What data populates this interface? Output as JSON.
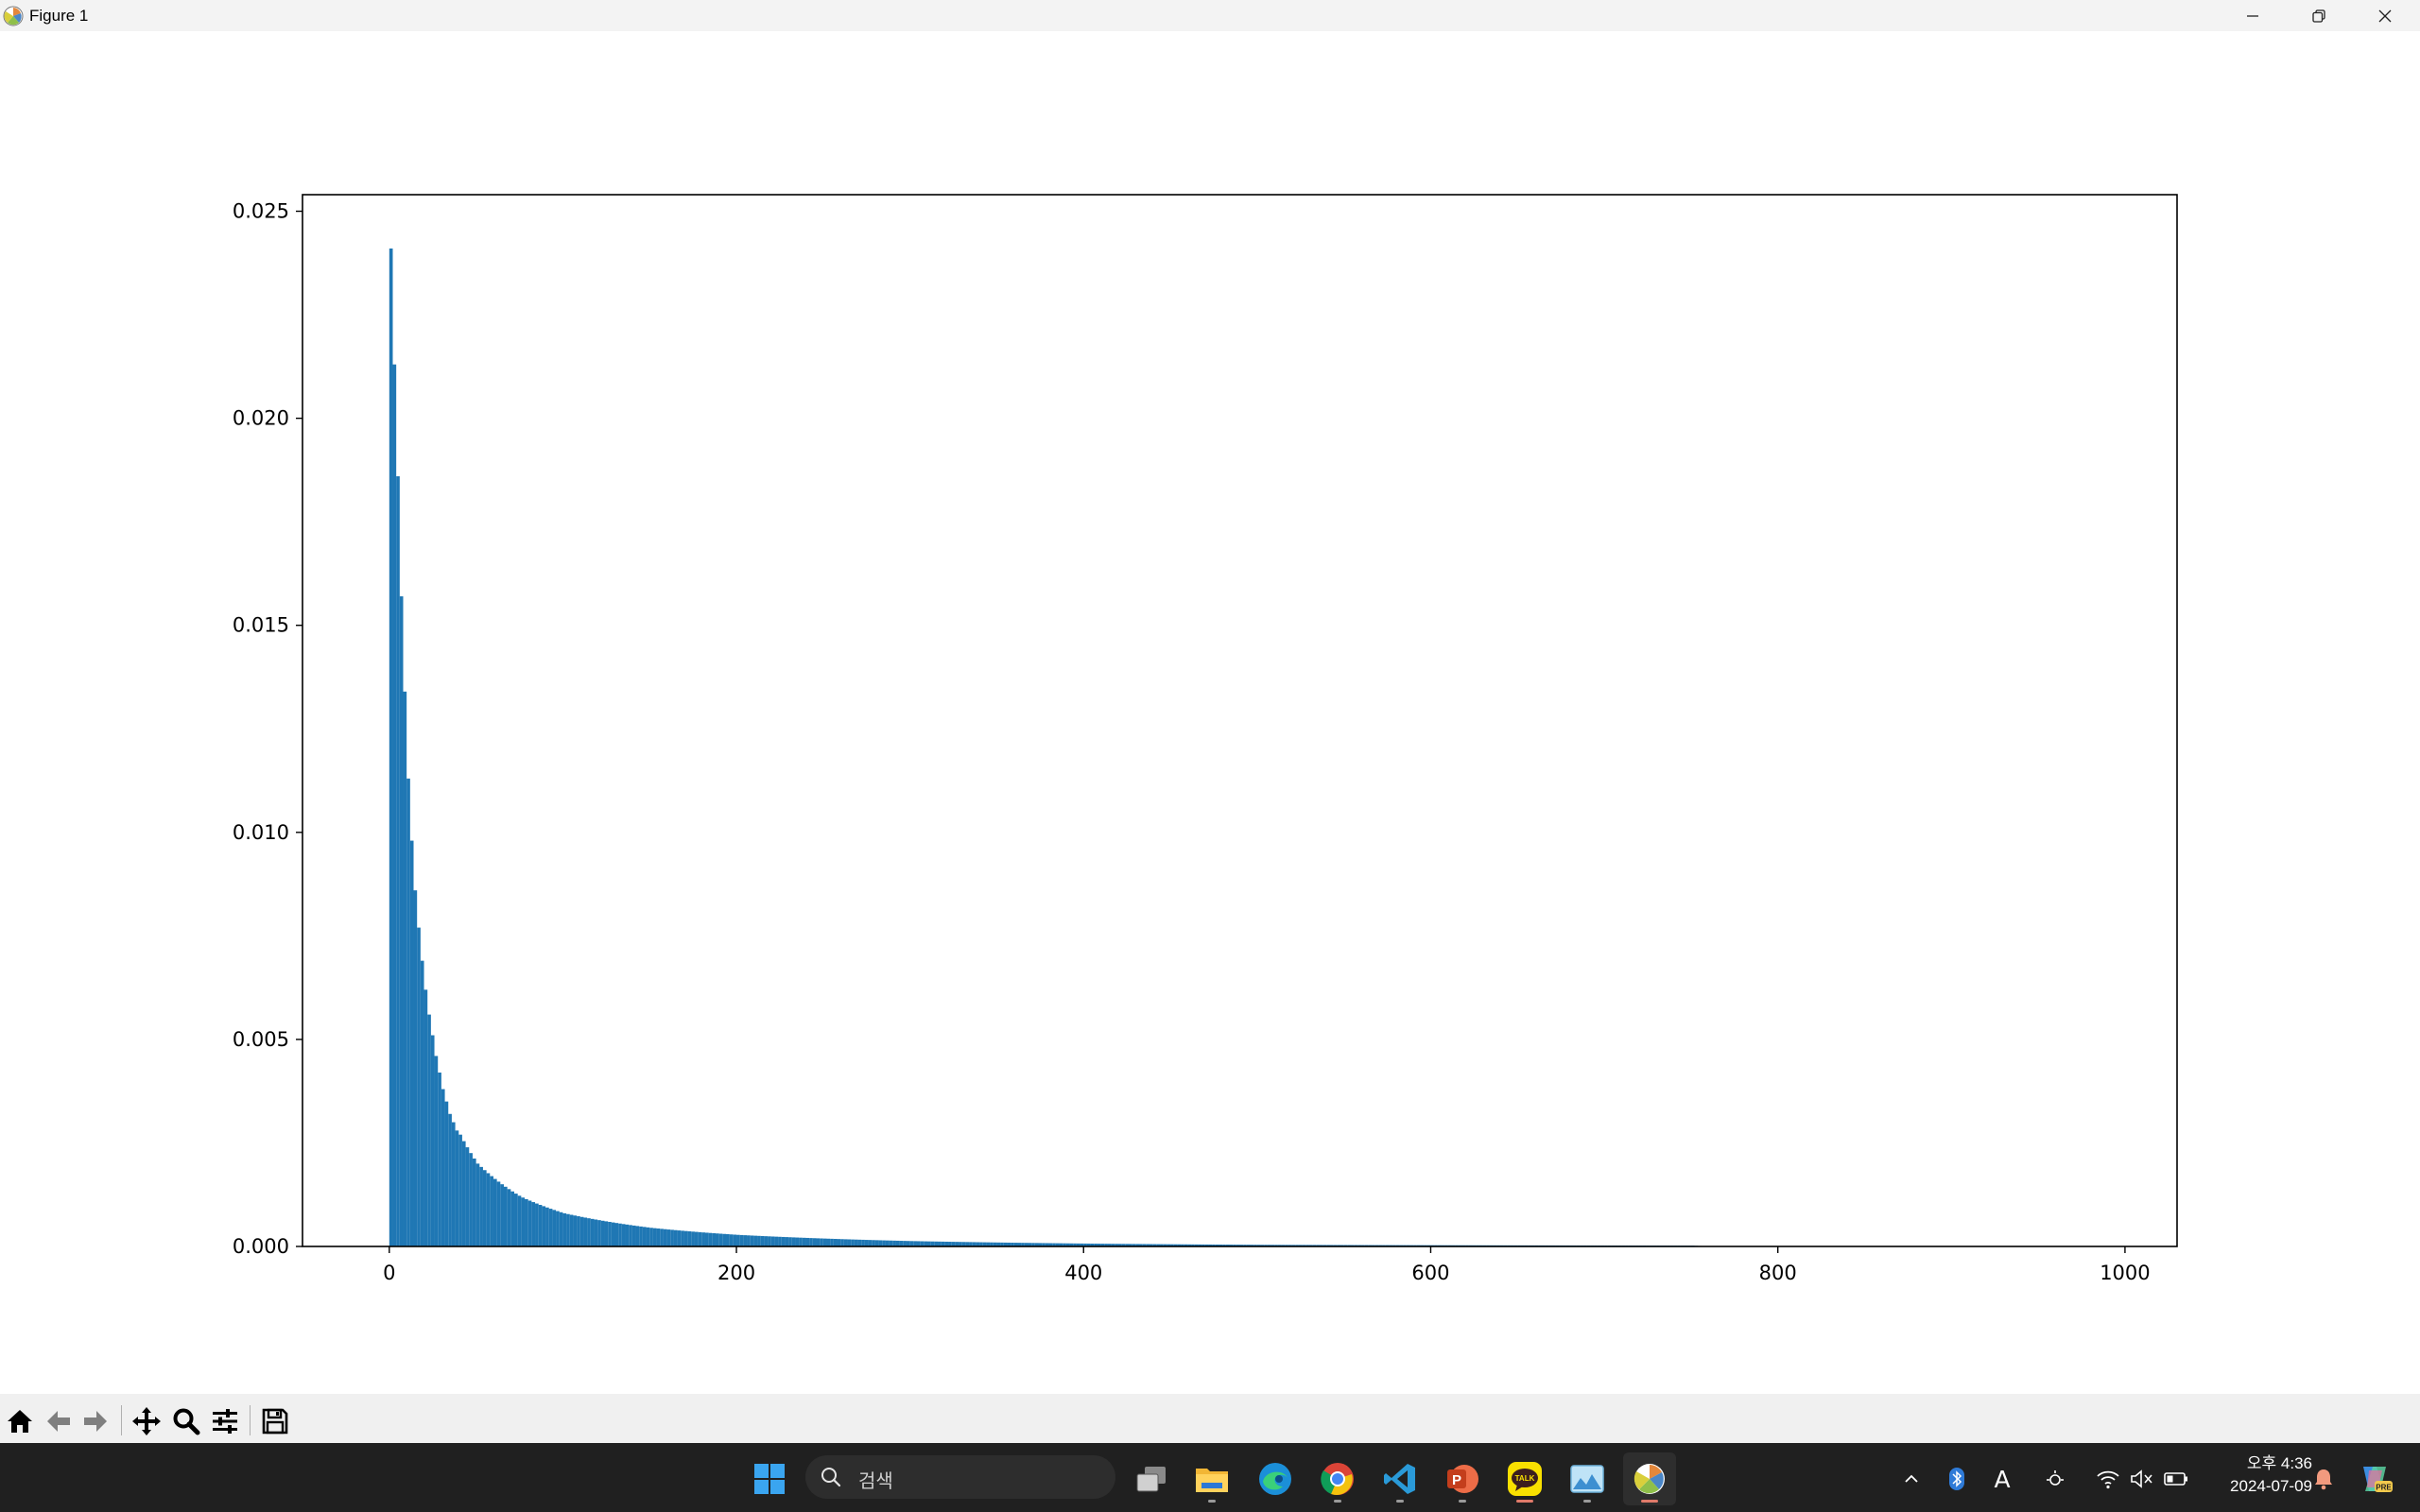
{
  "window": {
    "title": "Figure 1",
    "controls": [
      "minimize-icon",
      "restore-icon",
      "close-icon"
    ]
  },
  "chart_data": {
    "type": "bar",
    "description_kind": "histogram",
    "title": "",
    "xlabel": "",
    "ylabel": "",
    "xlim": [
      -50,
      1030
    ],
    "ylim": [
      0,
      0.0254
    ],
    "x_ticks": [
      "0",
      "200",
      "400",
      "600",
      "800",
      "1000"
    ],
    "x_tick_values": [
      0,
      200,
      400,
      600,
      800,
      1000
    ],
    "y_ticks": [
      "0.000",
      "0.005",
      "0.010",
      "0.015",
      "0.020",
      "0.025"
    ],
    "y_tick_values": [
      0,
      0.005,
      0.01,
      0.015,
      0.02,
      0.025
    ],
    "bar_color": "#1f77b4",
    "grid": false,
    "series": [
      {
        "bin_width": 2,
        "x_start": 0,
        "x_end": 1000,
        "peak_values_first_bins": [
          0.0241,
          0.0213,
          0.0186,
          0.0157,
          0.0134,
          0.0113,
          0.0098,
          0.0086,
          0.0077,
          0.0069,
          0.0062,
          0.0056,
          0.0051,
          0.0046,
          0.0042,
          0.0038,
          0.0035,
          0.0032,
          0.003,
          0.0028
        ],
        "sample_points": [
          {
            "x": 0,
            "y": 0.0241
          },
          {
            "x": 2,
            "y": 0.0213
          },
          {
            "x": 4,
            "y": 0.0186
          },
          {
            "x": 6,
            "y": 0.0157
          },
          {
            "x": 8,
            "y": 0.0134
          },
          {
            "x": 10,
            "y": 0.0113
          },
          {
            "x": 20,
            "y": 0.006
          },
          {
            "x": 30,
            "y": 0.0038
          },
          {
            "x": 40,
            "y": 0.0027
          },
          {
            "x": 50,
            "y": 0.002
          },
          {
            "x": 75,
            "y": 0.0012
          },
          {
            "x": 100,
            "y": 0.0008
          },
          {
            "x": 150,
            "y": 0.00045
          },
          {
            "x": 200,
            "y": 0.00028
          },
          {
            "x": 300,
            "y": 0.00013
          },
          {
            "x": 400,
            "y": 7e-05
          },
          {
            "x": 500,
            "y": 4e-05
          },
          {
            "x": 600,
            "y": 3e-05
          },
          {
            "x": 750,
            "y": 2e-05
          },
          {
            "x": 760,
            "y": 0.0
          },
          {
            "x": 1000,
            "y": 0.0
          }
        ]
      }
    ]
  },
  "toolbar": {
    "buttons": [
      "home-icon",
      "back-arrow-icon",
      "forward-arrow-icon",
      "pan-icon",
      "zoom-icon",
      "configure-subplots-icon",
      "save-icon"
    ]
  },
  "taskbar": {
    "search_placeholder": "검색",
    "apps": [
      "windows-start-icon",
      "task-view-icon",
      "file-explorer-icon",
      "edge-icon",
      "chrome-icon",
      "vscode-icon",
      "powerpoint-icon",
      "kakaotalk-icon",
      "photos-icon",
      "matplotlib-figure-icon"
    ],
    "kakaotalk_label": "TALK",
    "tray": [
      "chevron-up-icon",
      "bluetooth-icon",
      "ime-icon",
      "brightness-icon",
      "wifi-icon",
      "volume-muted-icon",
      "battery-icon",
      "notification-bell-icon",
      "copilot-icon"
    ],
    "ime_label": "A",
    "clock_time": "오후 4:36",
    "clock_date": "2024-07-09",
    "copilot_badge": "PRE"
  },
  "colors": {
    "accent": "#1f77b4",
    "taskbar_bg": "#202020",
    "titlebar_bg": "#f3f3f3",
    "toolbar_bg": "#f0f0f0"
  }
}
